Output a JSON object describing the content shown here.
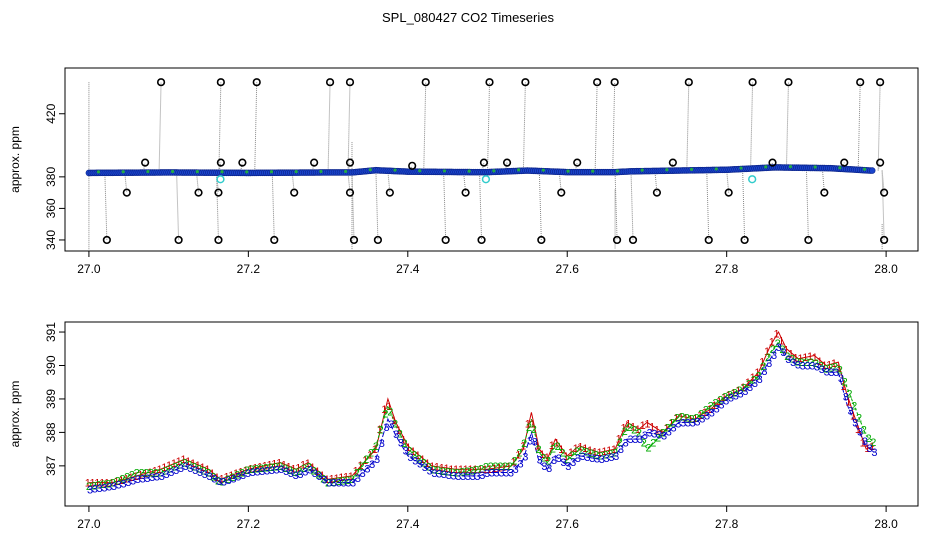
{
  "title": "SPL_080427  CO2 Timeseries",
  "chart_data": [
    {
      "type": "scatter",
      "ylabel": "approx. ppm",
      "xlim": [
        26.97,
        28.04
      ],
      "ylim": [
        333,
        449
      ],
      "x_ticks": [
        "27.0",
        "27.2",
        "27.4",
        "27.6",
        "27.8",
        "28.0"
      ],
      "y_ticks": [
        "340",
        "360",
        "380",
        "420"
      ],
      "x_tick_values": [
        27.0,
        27.2,
        27.4,
        27.6,
        27.8,
        28.0
      ],
      "y_tick_values": [
        340,
        360,
        380,
        420
      ],
      "baseline": [
        [
          27.0,
          382.5
        ],
        [
          27.1,
          382.8
        ],
        [
          27.2,
          382.5
        ],
        [
          27.3,
          382.8
        ],
        [
          27.33,
          382.8
        ],
        [
          27.36,
          384.2
        ],
        [
          27.4,
          383.3
        ],
        [
          27.48,
          383.0
        ],
        [
          27.5,
          383.0
        ],
        [
          27.55,
          384.0
        ],
        [
          27.6,
          383.0
        ],
        [
          27.66,
          383.0
        ],
        [
          27.68,
          383.5
        ],
        [
          27.8,
          384.5
        ],
        [
          27.86,
          386.0
        ],
        [
          27.93,
          385.5
        ],
        [
          27.98,
          384.0
        ]
      ],
      "outliers_high": [
        27.088,
        27.163,
        27.208,
        27.3,
        27.325,
        27.42,
        27.5,
        27.545,
        27.635,
        27.657,
        27.75,
        27.83,
        27.875,
        27.965,
        27.99
      ],
      "outliers_low": [
        27.02,
        27.11,
        27.16,
        27.23,
        27.33,
        27.36,
        27.445,
        27.49,
        27.565,
        27.66,
        27.68,
        27.775,
        27.82,
        27.9,
        27.995
      ],
      "mid_high_markers": [
        [
          27.068,
          389
        ],
        [
          27.163,
          389
        ],
        [
          27.19,
          389
        ],
        [
          27.28,
          389
        ],
        [
          27.325,
          389
        ],
        [
          27.403,
          387
        ],
        [
          27.493,
          389
        ],
        [
          27.522,
          389
        ],
        [
          27.61,
          389
        ],
        [
          27.73,
          389
        ],
        [
          27.855,
          389
        ],
        [
          27.945,
          389
        ],
        [
          27.99,
          389
        ]
      ],
      "mid_low_markers": [
        [
          27.045,
          370
        ],
        [
          27.135,
          370
        ],
        [
          27.16,
          370
        ],
        [
          27.255,
          370
        ],
        [
          27.325,
          370
        ],
        [
          27.375,
          370
        ],
        [
          27.47,
          370
        ],
        [
          27.59,
          370
        ],
        [
          27.71,
          370
        ],
        [
          27.8,
          370
        ],
        [
          27.92,
          370
        ],
        [
          27.995,
          370
        ]
      ],
      "cyan_points": [
        [
          27.165,
          378.5
        ],
        [
          27.498,
          378.5
        ],
        [
          27.832,
          378.5
        ]
      ]
    },
    {
      "type": "line",
      "ylabel": "approx. ppm",
      "xlim": [
        26.97,
        28.04
      ],
      "ylim": [
        385.8,
        391.3
      ],
      "x_ticks": [
        "27.0",
        "27.2",
        "27.4",
        "27.6",
        "27.8",
        "28.0"
      ],
      "y_ticks": [
        "387",
        "388",
        "389",
        "390",
        "391"
      ],
      "x_tick_values": [
        27.0,
        27.2,
        27.4,
        27.6,
        27.8,
        28.0
      ],
      "y_tick_values": [
        387,
        388,
        389,
        390,
        391
      ],
      "series": [
        {
          "marker": "1",
          "color": "#cc0000",
          "points": [
            [
              27.0,
              386.5
            ],
            [
              27.03,
              386.5
            ],
            [
              27.06,
              386.7
            ],
            [
              27.09,
              386.9
            ],
            [
              27.12,
              387.2
            ],
            [
              27.15,
              386.9
            ],
            [
              27.165,
              386.6
            ],
            [
              27.2,
              386.9
            ],
            [
              27.24,
              387.1
            ],
            [
              27.26,
              386.9
            ],
            [
              27.275,
              387.1
            ],
            [
              27.3,
              386.6
            ],
            [
              27.33,
              386.7
            ],
            [
              27.36,
              387.5
            ],
            [
              27.375,
              389.0
            ],
            [
              27.385,
              388.3
            ],
            [
              27.4,
              387.6
            ],
            [
              27.43,
              387.0
            ],
            [
              27.46,
              386.9
            ],
            [
              27.49,
              386.9
            ],
            [
              27.5,
              386.9
            ],
            [
              27.53,
              387.0
            ],
            [
              27.545,
              387.5
            ],
            [
              27.555,
              388.6
            ],
            [
              27.565,
              387.5
            ],
            [
              27.575,
              387.2
            ],
            [
              27.585,
              387.8
            ],
            [
              27.6,
              387.3
            ],
            [
              27.615,
              387.6
            ],
            [
              27.64,
              387.4
            ],
            [
              27.66,
              387.5
            ],
            [
              27.675,
              388.3
            ],
            [
              27.69,
              388.1
            ],
            [
              27.7,
              388.3
            ],
            [
              27.72,
              388.0
            ],
            [
              27.74,
              388.5
            ],
            [
              27.76,
              388.4
            ],
            [
              27.78,
              388.7
            ],
            [
              27.8,
              389.1
            ],
            [
              27.82,
              389.3
            ],
            [
              27.84,
              389.8
            ],
            [
              27.855,
              390.6
            ],
            [
              27.865,
              391.0
            ],
            [
              27.875,
              390.5
            ],
            [
              27.89,
              390.2
            ],
            [
              27.91,
              390.3
            ],
            [
              27.925,
              390.0
            ],
            [
              27.94,
              390.1
            ],
            [
              27.95,
              389.2
            ],
            [
              27.96,
              388.5
            ],
            [
              27.975,
              387.5
            ],
            [
              27.985,
              387.6
            ]
          ]
        },
        {
          "marker": "2",
          "color": "#00aa00",
          "points": [
            [
              27.0,
              386.4
            ],
            [
              27.03,
              386.5
            ],
            [
              27.06,
              386.8
            ],
            [
              27.09,
              386.8
            ],
            [
              27.12,
              387.1
            ],
            [
              27.15,
              386.8
            ],
            [
              27.165,
              386.5
            ],
            [
              27.2,
              386.9
            ],
            [
              27.24,
              387.0
            ],
            [
              27.26,
              386.8
            ],
            [
              27.275,
              387.0
            ],
            [
              27.3,
              386.5
            ],
            [
              27.33,
              386.6
            ],
            [
              27.36,
              387.6
            ],
            [
              27.375,
              388.8
            ],
            [
              27.385,
              388.2
            ],
            [
              27.4,
              387.5
            ],
            [
              27.43,
              386.9
            ],
            [
              27.46,
              386.8
            ],
            [
              27.49,
              386.9
            ],
            [
              27.5,
              387.0
            ],
            [
              27.53,
              387.0
            ],
            [
              27.545,
              387.6
            ],
            [
              27.555,
              388.4
            ],
            [
              27.565,
              387.4
            ],
            [
              27.575,
              387.1
            ],
            [
              27.585,
              387.7
            ],
            [
              27.6,
              387.2
            ],
            [
              27.615,
              387.5
            ],
            [
              27.64,
              387.3
            ],
            [
              27.66,
              387.4
            ],
            [
              27.675,
              388.2
            ],
            [
              27.69,
              388.0
            ],
            [
              27.7,
              387.5
            ],
            [
              27.72,
              388.0
            ],
            [
              27.74,
              388.5
            ],
            [
              27.76,
              388.4
            ],
            [
              27.78,
              388.8
            ],
            [
              27.8,
              389.1
            ],
            [
              27.82,
              389.3
            ],
            [
              27.84,
              389.7
            ],
            [
              27.855,
              390.4
            ],
            [
              27.865,
              390.7
            ],
            [
              27.875,
              390.3
            ],
            [
              27.89,
              390.1
            ],
            [
              27.91,
              390.1
            ],
            [
              27.925,
              389.9
            ],
            [
              27.94,
              390.0
            ],
            [
              27.95,
              389.4
            ],
            [
              27.96,
              388.8
            ],
            [
              27.975,
              387.9
            ],
            [
              27.985,
              387.7
            ]
          ]
        },
        {
          "marker": "3",
          "color": "#0000cc",
          "points": [
            [
              27.0,
              386.3
            ],
            [
              27.03,
              386.4
            ],
            [
              27.06,
              386.6
            ],
            [
              27.09,
              386.7
            ],
            [
              27.12,
              387.0
            ],
            [
              27.15,
              386.7
            ],
            [
              27.165,
              386.5
            ],
            [
              27.2,
              386.8
            ],
            [
              27.24,
              386.9
            ],
            [
              27.26,
              386.7
            ],
            [
              27.275,
              386.9
            ],
            [
              27.3,
              386.5
            ],
            [
              27.33,
              386.5
            ],
            [
              27.36,
              387.2
            ],
            [
              27.375,
              388.4
            ],
            [
              27.385,
              387.9
            ],
            [
              27.4,
              387.3
            ],
            [
              27.43,
              386.8
            ],
            [
              27.46,
              386.7
            ],
            [
              27.49,
              386.7
            ],
            [
              27.5,
              386.8
            ],
            [
              27.53,
              386.8
            ],
            [
              27.545,
              387.2
            ],
            [
              27.555,
              388.0
            ],
            [
              27.565,
              387.1
            ],
            [
              27.575,
              386.9
            ],
            [
              27.585,
              387.3
            ],
            [
              27.6,
              387.0
            ],
            [
              27.615,
              387.3
            ],
            [
              27.64,
              387.2
            ],
            [
              27.66,
              387.3
            ],
            [
              27.675,
              387.8
            ],
            [
              27.69,
              387.8
            ],
            [
              27.7,
              388.0
            ],
            [
              27.72,
              387.9
            ],
            [
              27.74,
              388.3
            ],
            [
              27.76,
              388.3
            ],
            [
              27.78,
              388.6
            ],
            [
              27.8,
              389.0
            ],
            [
              27.82,
              389.2
            ],
            [
              27.84,
              389.6
            ],
            [
              27.855,
              390.2
            ],
            [
              27.865,
              390.6
            ],
            [
              27.875,
              390.2
            ],
            [
              27.89,
              390.0
            ],
            [
              27.91,
              390.0
            ],
            [
              27.925,
              389.8
            ],
            [
              27.94,
              389.8
            ],
            [
              27.95,
              388.9
            ],
            [
              27.96,
              388.3
            ],
            [
              27.975,
              387.6
            ],
            [
              27.985,
              387.4
            ]
          ]
        }
      ]
    }
  ]
}
